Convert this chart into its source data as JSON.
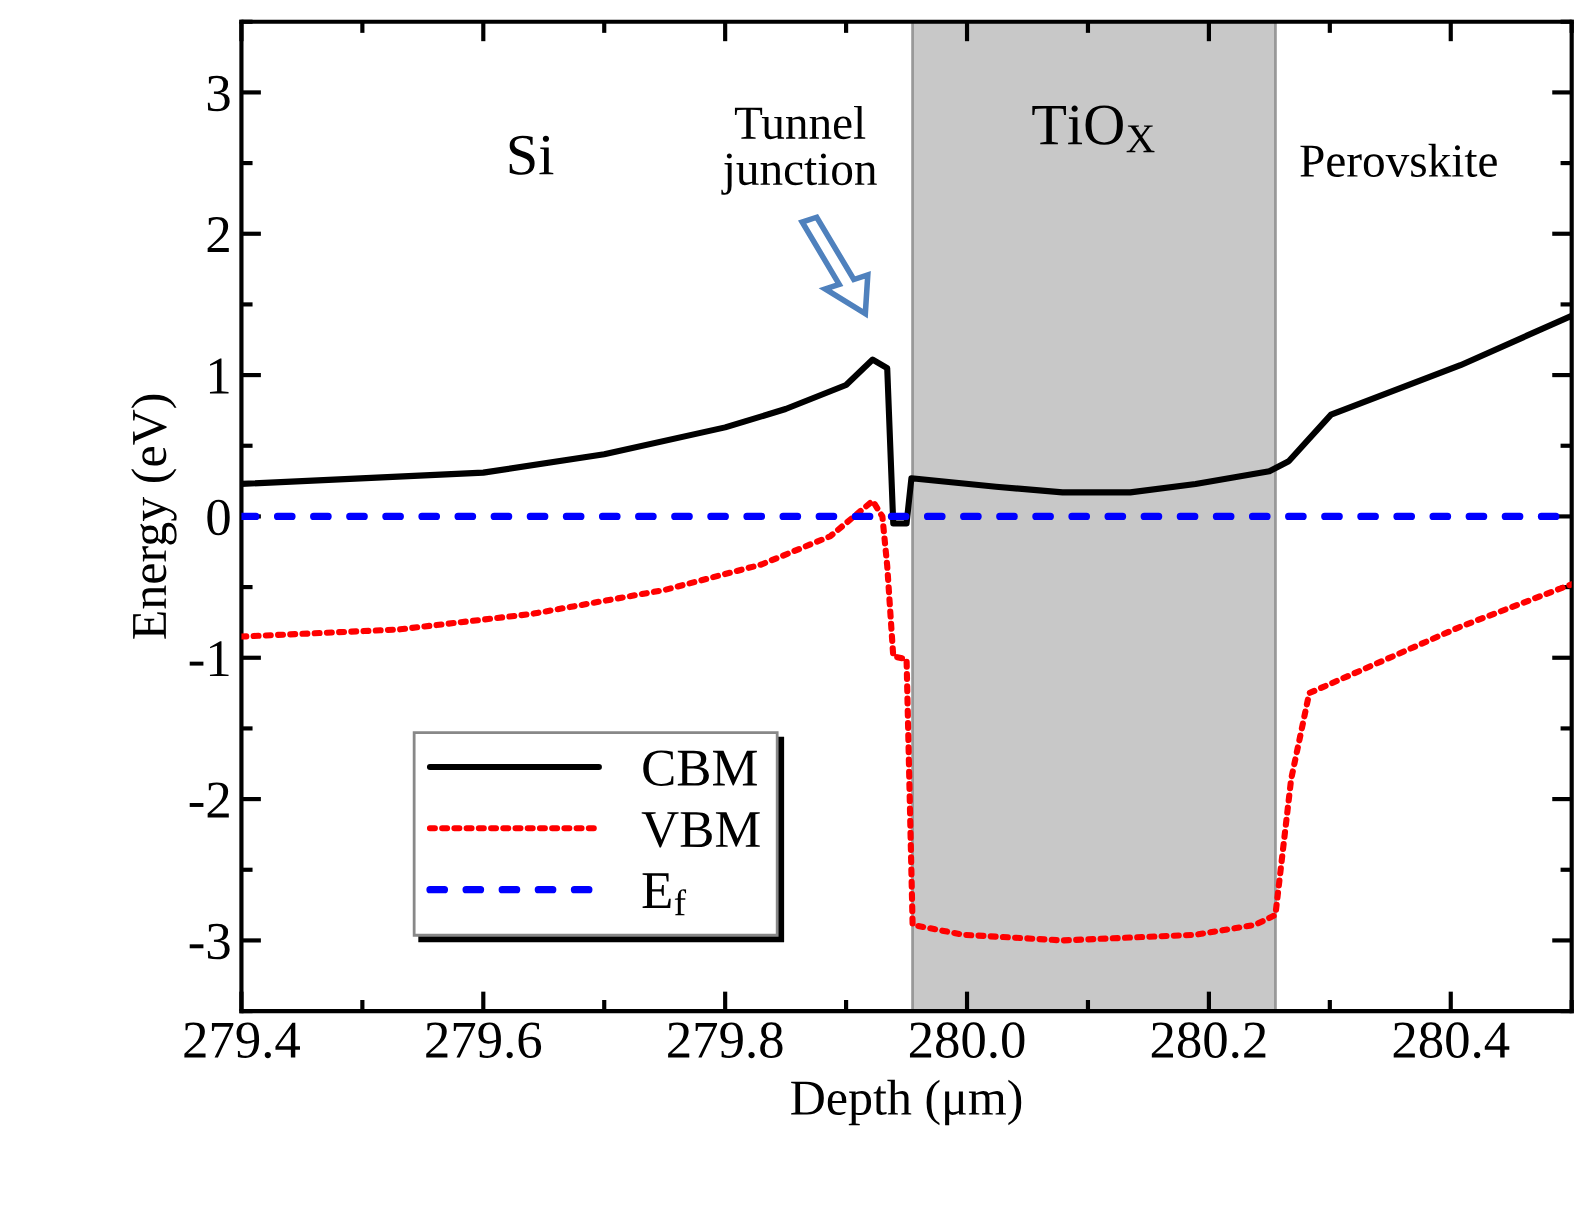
{
  "chart_data": {
    "type": "line",
    "xlabel": "Depth (μm)",
    "ylabel": "Energy (eV)",
    "xlim": [
      279.4,
      280.5
    ],
    "ylim": [
      -3.5,
      3.5
    ],
    "xticks": [
      279.4,
      279.6,
      279.8,
      {
        "value": 280.0,
        "label": "280.0"
      },
      280.2,
      280.4
    ],
    "yticks": [
      -3,
      -2,
      -1,
      0,
      1,
      2,
      3
    ],
    "grid": false,
    "legend": "bottom left",
    "bands": [
      {
        "axis": "x",
        "from": 279.955,
        "to": 280.255,
        "label": "TiO$_{X}$",
        "color": "#c8c8c8"
      }
    ],
    "annotations": [
      "Si",
      "Perovskite",
      "Tunnel\njunction"
    ],
    "series": [
      {
        "name": "CBM",
        "color": "#000000",
        "line_style": "solid",
        "x": [
          279.4,
          279.6,
          279.7,
          279.8,
          279.85,
          279.9,
          279.922,
          279.934,
          279.939,
          279.95,
          279.954,
          280.024,
          280.079,
          280.135,
          280.189,
          280.25,
          280.266,
          280.301,
          280.408,
          280.5
        ],
        "values": [
          0.23,
          0.31,
          0.44,
          0.63,
          0.76,
          0.93,
          1.11,
          1.05,
          -0.05,
          -0.05,
          0.27,
          0.21,
          0.17,
          0.17,
          0.23,
          0.32,
          0.39,
          0.72,
          1.07,
          1.42
        ]
      },
      {
        "name": "VBM",
        "color": "#ff0000",
        "line_style": "dotted",
        "x": [
          279.4,
          279.53,
          279.64,
          279.75,
          279.83,
          279.887,
          279.922,
          279.93,
          279.934,
          279.939,
          279.95,
          279.955,
          279.997,
          280.079,
          280.189,
          280.238,
          280.255,
          280.268,
          280.283,
          280.408,
          280.5
        ],
        "values": [
          -0.85,
          -0.8,
          -0.69,
          -0.52,
          -0.34,
          -0.14,
          0.11,
          0.0,
          -0.35,
          -0.99,
          -1.01,
          -2.89,
          -2.96,
          -3.0,
          -2.96,
          -2.89,
          -2.82,
          -1.86,
          -1.25,
          -0.78,
          -0.48
        ]
      },
      {
        "name": "E$_{f}$",
        "color": "#0000ff",
        "line_style": "dashed",
        "x": [
          279.4,
          280.5
        ],
        "values": [
          0,
          0
        ]
      }
    ]
  }
}
